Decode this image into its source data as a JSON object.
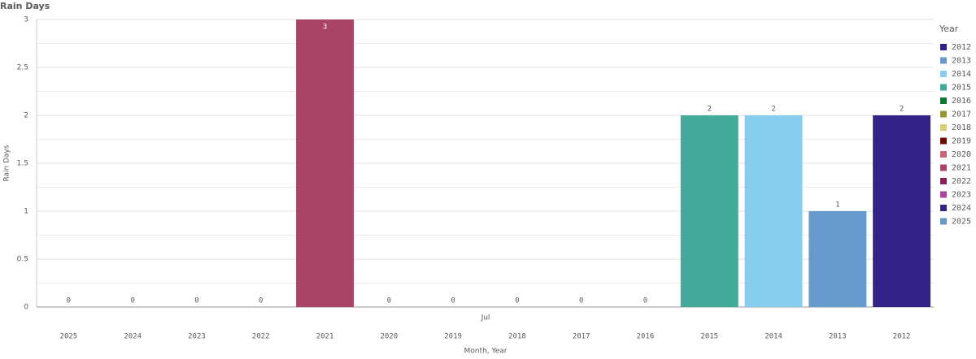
{
  "chart_data": {
    "type": "bar",
    "title": "Rain Days",
    "y_label": "Rain Days",
    "x_label": "Month, Year",
    "group_label": "Jul",
    "categories": [
      "2025",
      "2024",
      "2023",
      "2022",
      "2021",
      "2020",
      "2019",
      "2018",
      "2017",
      "2016",
      "2015",
      "2014",
      "2013",
      "2012"
    ],
    "values": [
      0,
      0,
      0,
      0,
      3,
      0,
      0,
      0,
      0,
      0,
      2,
      2,
      1,
      2
    ],
    "ylim": [
      0,
      3
    ],
    "yticks": [
      0,
      0.5,
      1,
      1.5,
      2,
      2.5,
      3
    ],
    "grid": true,
    "legend": {
      "title": "Year",
      "position": "right",
      "items": [
        {
          "name": "2012",
          "color": "#332288"
        },
        {
          "name": "2013",
          "color": "#6699cc"
        },
        {
          "name": "2014",
          "color": "#88ccee"
        },
        {
          "name": "2015",
          "color": "#44aa99"
        },
        {
          "name": "2016",
          "color": "#117733"
        },
        {
          "name": "2017",
          "color": "#999933"
        },
        {
          "name": "2018",
          "color": "#ddcc77"
        },
        {
          "name": "2019",
          "color": "#661100"
        },
        {
          "name": "2020",
          "color": "#cc6677"
        },
        {
          "name": "2021",
          "color": "#aa4466"
        },
        {
          "name": "2022",
          "color": "#882255"
        },
        {
          "name": "2023",
          "color": "#aa4499"
        },
        {
          "name": "2024",
          "color": "#332288"
        },
        {
          "name": "2025",
          "color": "#6699cc"
        }
      ]
    }
  }
}
